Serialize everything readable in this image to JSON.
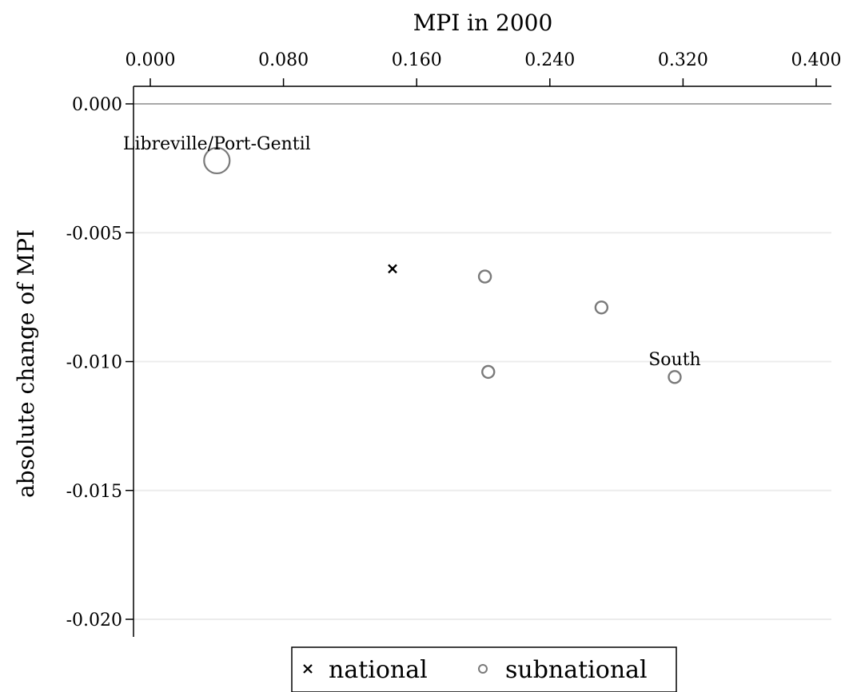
{
  "chart_data": {
    "type": "scatter",
    "xlabel": "MPI in 2000",
    "ylabel": "absolute change of MPI",
    "x_axis_position": "top",
    "xlim": [
      0.0,
      0.4
    ],
    "ylim": [
      -0.02,
      0.0
    ],
    "x_ticks": [
      "0.000",
      "0.080",
      "0.160",
      "0.240",
      "0.320",
      "0.400"
    ],
    "y_ticks": [
      "0.000",
      "-0.005",
      "-0.010",
      "-0.015",
      "-0.020"
    ],
    "grid": "horizontal",
    "legend_placement": "bottom-center",
    "colors": {
      "national": "#000000",
      "subnational": "#7a7a7a",
      "grid": "#ececec"
    },
    "series": [
      {
        "name": "national",
        "marker": "x",
        "points": [
          {
            "x": 0.1455,
            "y": -0.0064
          }
        ]
      },
      {
        "name": "subnational",
        "marker": "hollow-circle",
        "points": [
          {
            "x": 0.04,
            "y": -0.0022,
            "size": "large",
            "label": "Libreville/Port-Gentil"
          },
          {
            "x": 0.201,
            "y": -0.0067,
            "size": "small"
          },
          {
            "x": 0.271,
            "y": -0.0079,
            "size": "small"
          },
          {
            "x": 0.203,
            "y": -0.0104,
            "size": "small"
          },
          {
            "x": 0.315,
            "y": -0.0106,
            "size": "small",
            "label": "South"
          }
        ]
      }
    ],
    "legend": [
      {
        "marker": "x",
        "label": "national"
      },
      {
        "marker": "hollow-circle",
        "label": "subnational"
      }
    ]
  }
}
